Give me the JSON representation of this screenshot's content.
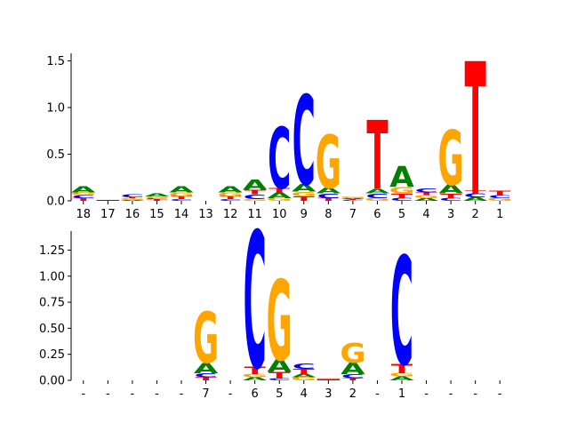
{
  "colors": {
    "A": "#008000",
    "C": "#0000ff",
    "G": "#ffa500",
    "T": "#ff0000",
    "axis": "#000000"
  },
  "chart_data": [
    {
      "type": "sequence-logo",
      "ylim": [
        0,
        1.6
      ],
      "yticks": [
        "0.0",
        "0.5",
        "1.0",
        "1.5"
      ],
      "ytick_values": [
        0,
        0.5,
        1.0,
        1.5
      ],
      "xtick_labels": [
        "18",
        "17",
        "16",
        "15",
        "14",
        "13",
        "12",
        "11",
        "10",
        "9",
        "8",
        "7",
        "6",
        "5",
        "4",
        "3",
        "2",
        "1"
      ],
      "grid": false,
      "positions": [
        [
          [
            "T",
            0.03
          ],
          [
            "C",
            0.03
          ],
          [
            "G",
            0.03
          ],
          [
            "A",
            0.07
          ]
        ],
        [
          [
            "C",
            0.005
          ],
          [
            "T",
            0.005
          ]
        ],
        [
          [
            "A",
            0.01
          ],
          [
            "G",
            0.02
          ],
          [
            "T",
            0.01
          ],
          [
            "C",
            0.03
          ]
        ],
        [
          [
            "T",
            0.02
          ],
          [
            "C",
            0.01
          ],
          [
            "G",
            0.02
          ],
          [
            "A",
            0.03
          ]
        ],
        [
          [
            "C",
            0.02
          ],
          [
            "T",
            0.03
          ],
          [
            "G",
            0.04
          ],
          [
            "A",
            0.07
          ]
        ],
        [],
        [
          [
            "C",
            0.02
          ],
          [
            "T",
            0.03
          ],
          [
            "G",
            0.04
          ],
          [
            "A",
            0.07
          ]
        ],
        [
          [
            "G",
            0.02
          ],
          [
            "C",
            0.05
          ],
          [
            "T",
            0.05
          ],
          [
            "A",
            0.11
          ]
        ],
        [
          [
            "G",
            0.03
          ],
          [
            "A",
            0.06
          ],
          [
            "T",
            0.05
          ],
          [
            "C",
            0.66
          ]
        ],
        [
          [
            "T",
            0.05
          ],
          [
            "G",
            0.05
          ],
          [
            "A",
            0.08
          ],
          [
            "C",
            0.96
          ]
        ],
        [
          [
            "T",
            0.03
          ],
          [
            "C",
            0.05
          ],
          [
            "A",
            0.06
          ],
          [
            "G",
            0.57
          ]
        ],
        [
          [
            "C",
            0.01
          ],
          [
            "T",
            0.01
          ],
          [
            "A",
            0.01
          ],
          [
            "G",
            0.02
          ]
        ],
        [
          [
            "G",
            0.03
          ],
          [
            "C",
            0.05
          ],
          [
            "A",
            0.05
          ],
          [
            "T",
            0.74
          ]
        ],
        [
          [
            "C",
            0.03
          ],
          [
            "T",
            0.05
          ],
          [
            "G",
            0.07
          ],
          [
            "A",
            0.22
          ]
        ],
        [
          [
            "A",
            0.03
          ],
          [
            "G",
            0.03
          ],
          [
            "T",
            0.03
          ],
          [
            "C",
            0.04
          ]
        ],
        [
          [
            "C",
            0.03
          ],
          [
            "T",
            0.05
          ],
          [
            "A",
            0.09
          ],
          [
            "G",
            0.59
          ]
        ],
        [
          [
            "A",
            0.04
          ],
          [
            "C",
            0.04
          ],
          [
            "T",
            0.03
          ],
          [
            "T",
            1.39
          ]
        ],
        [
          [
            "G",
            0.03
          ],
          [
            "C",
            0.03
          ],
          [
            "T",
            0.05
          ]
        ]
      ]
    },
    {
      "type": "sequence-logo",
      "ylim": [
        0,
        1.45
      ],
      "yticks": [
        "0.00",
        "0.25",
        "0.50",
        "0.75",
        "1.00",
        "1.25"
      ],
      "ytick_values": [
        0,
        0.25,
        0.5,
        0.75,
        1.0,
        1.25
      ],
      "xtick_labels": [
        "-",
        "-",
        "-",
        "-",
        "-",
        "7",
        "-",
        "6",
        "5",
        "4",
        "3",
        "2",
        "-",
        "1",
        "-",
        "-",
        "-",
        "-"
      ],
      "grid": false,
      "positions": [
        [],
        [],
        [],
        [],
        [],
        [
          [
            "T",
            0.03
          ],
          [
            "C",
            0.04
          ],
          [
            "A",
            0.1
          ],
          [
            "G",
            0.49
          ]
        ],
        [],
        [
          [
            "A",
            0.03
          ],
          [
            "G",
            0.03
          ],
          [
            "T",
            0.07
          ],
          [
            "C",
            1.31
          ]
        ],
        [
          [
            "C",
            0.02
          ],
          [
            "T",
            0.06
          ],
          [
            "A",
            0.12
          ],
          [
            "G",
            0.77
          ]
        ],
        [
          [
            "G",
            0.03
          ],
          [
            "A",
            0.03
          ],
          [
            "T",
            0.05
          ],
          [
            "C",
            0.05
          ]
        ],
        [
          [
            "A",
            0.005
          ],
          [
            "C",
            0.005
          ],
          [
            "T",
            0.005
          ],
          [
            "G",
            0.005
          ]
        ],
        [
          [
            "T",
            0.02
          ],
          [
            "C",
            0.04
          ],
          [
            "A",
            0.11
          ],
          [
            "G",
            0.19
          ]
        ],
        [],
        [
          [
            "A",
            0.04
          ],
          [
            "G",
            0.03
          ],
          [
            "T",
            0.09
          ],
          [
            "C",
            1.04
          ]
        ],
        [],
        [],
        [],
        []
      ]
    }
  ]
}
